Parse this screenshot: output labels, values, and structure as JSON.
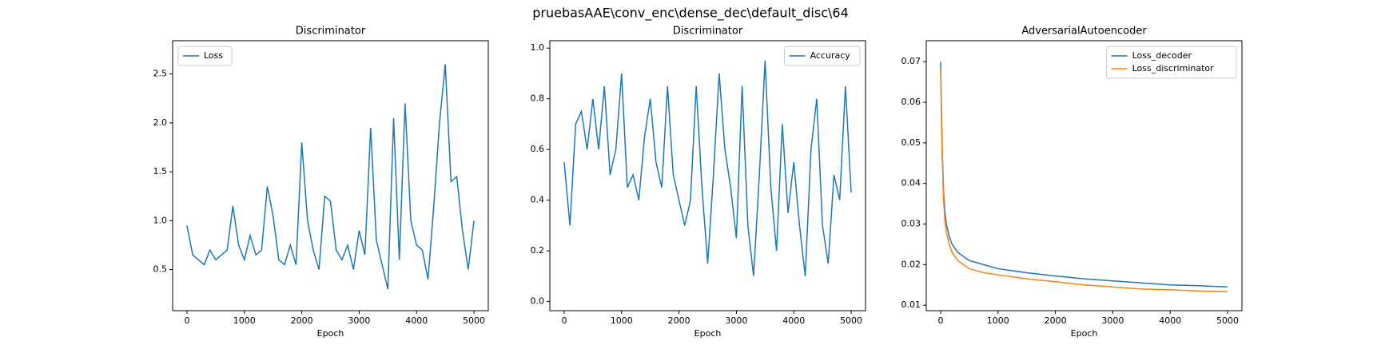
{
  "title": "pruebasAAE\\conv_enc\\dense_dec\\default_disc\\64",
  "chart_data": [
    {
      "type": "line",
      "title": "Discriminator",
      "x_label": "Epoch",
      "x": [
        0,
        100,
        200,
        300,
        400,
        500,
        600,
        700,
        800,
        900,
        1000,
        1100,
        1200,
        1300,
        1400,
        1500,
        1600,
        1700,
        1800,
        1900,
        2000,
        2100,
        2200,
        2300,
        2400,
        2500,
        2600,
        2700,
        2800,
        2900,
        3000,
        3100,
        3200,
        3300,
        3400,
        3500,
        3600,
        3700,
        3800,
        3900,
        4000,
        4100,
        4200,
        4300,
        4400,
        4500,
        4600,
        4700,
        4800,
        4900,
        5000
      ],
      "series": [
        {
          "name": "Loss",
          "color": "#1f77b4",
          "values": [
            0.95,
            0.65,
            0.6,
            0.55,
            0.7,
            0.6,
            0.65,
            0.7,
            1.15,
            0.75,
            0.6,
            0.85,
            0.65,
            0.7,
            1.35,
            1.05,
            0.6,
            0.55,
            0.75,
            0.55,
            1.8,
            1.0,
            0.7,
            0.5,
            1.25,
            1.2,
            0.7,
            0.6,
            0.75,
            0.5,
            0.9,
            0.65,
            1.95,
            0.8,
            0.55,
            0.3,
            2.05,
            0.6,
            2.2,
            1.0,
            0.75,
            0.7,
            0.4,
            1.15,
            2.0,
            2.6,
            1.4,
            1.45,
            0.9,
            0.5,
            1.0
          ]
        }
      ],
      "xlim": [
        -250,
        5250
      ],
      "xticks": [
        0,
        1000,
        2000,
        3000,
        4000,
        5000
      ],
      "ylim": [
        0.08,
        2.84
      ],
      "yticks": [
        0.5,
        {
          "value": 1,
          "label": "1.0"
        },
        1.5,
        {
          "value": 2,
          "label": "2.0"
        },
        2.5
      ],
      "legend": "upper left"
    },
    {
      "type": "line",
      "title": "Discriminator",
      "x_label": "Epoch",
      "x": [
        0,
        100,
        200,
        300,
        400,
        500,
        600,
        700,
        800,
        900,
        1000,
        1100,
        1200,
        1300,
        1400,
        1500,
        1600,
        1700,
        1800,
        1900,
        2000,
        2100,
        2200,
        2300,
        2400,
        2500,
        2600,
        2700,
        2800,
        2900,
        3000,
        3100,
        3200,
        3300,
        3400,
        3500,
        3600,
        3700,
        3800,
        3900,
        4000,
        4100,
        4200,
        4300,
        4400,
        4500,
        4600,
        4700,
        4800,
        4900,
        5000
      ],
      "series": [
        {
          "name": "Accuracy",
          "color": "#1f77b4",
          "values": [
            0.55,
            0.3,
            0.7,
            0.75,
            0.6,
            0.8,
            0.6,
            0.85,
            0.5,
            0.6,
            0.9,
            0.45,
            0.5,
            0.4,
            0.65,
            0.8,
            0.55,
            0.45,
            0.85,
            0.5,
            0.4,
            0.3,
            0.4,
            0.85,
            0.45,
            0.15,
            0.5,
            0.9,
            0.6,
            0.45,
            0.25,
            0.85,
            0.3,
            0.1,
            0.5,
            0.95,
            0.45,
            0.2,
            0.7,
            0.35,
            0.55,
            0.3,
            0.1,
            0.6,
            0.8,
            0.3,
            0.15,
            0.5,
            0.4,
            0.85,
            0.43
          ]
        }
      ],
      "xlim": [
        -250,
        5250
      ],
      "xticks": [
        0,
        1000,
        2000,
        3000,
        4000,
        5000
      ],
      "ylim": [
        -0.036,
        1.029
      ],
      "yticks": [
        {
          "value": 0,
          "label": "0.0"
        },
        0.2,
        0.4,
        0.6,
        0.8,
        {
          "value": 1,
          "label": "1.0"
        }
      ],
      "legend": "upper right"
    },
    {
      "type": "line",
      "title": "AdversarialAutoencoder",
      "x_label": "Epoch",
      "x": [
        0,
        25,
        50,
        75,
        100,
        150,
        200,
        300,
        400,
        500,
        750,
        1000,
        1500,
        2000,
        2500,
        3000,
        3500,
        4000,
        4500,
        5000
      ],
      "series": [
        {
          "name": "Loss_decoder",
          "color": "#1f77b4",
          "values": [
            0.07,
            0.05,
            0.038,
            0.033,
            0.03,
            0.027,
            0.025,
            0.023,
            0.022,
            0.021,
            0.02,
            0.019,
            0.018,
            0.0172,
            0.0165,
            0.016,
            0.0155,
            0.015,
            0.0148,
            0.0145
          ]
        },
        {
          "name": "Loss_discriminator",
          "color": "#ff7f0e",
          "values": [
            0.068,
            0.048,
            0.036,
            0.031,
            0.028,
            0.025,
            0.023,
            0.021,
            0.02,
            0.019,
            0.018,
            0.0175,
            0.0165,
            0.0158,
            0.015,
            0.0145,
            0.014,
            0.0138,
            0.0135,
            0.0133
          ]
        }
      ],
      "xlim": [
        -250,
        5250
      ],
      "xticks": [
        0,
        1000,
        2000,
        3000,
        4000,
        5000
      ],
      "ylim": [
        0.00866,
        0.07515
      ],
      "yticks": [
        0.01,
        0.02,
        0.03,
        0.04,
        0.05,
        0.06,
        0.07
      ],
      "legend": "upper right"
    }
  ]
}
